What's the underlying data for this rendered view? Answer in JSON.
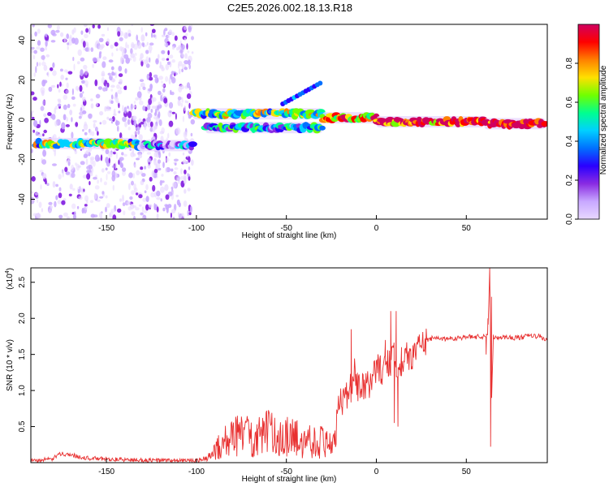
{
  "title": "C2E5.2026.002.18.13.R18",
  "colors": {
    "snr_line": "#e83030",
    "colormap": [
      "#e8d8ff",
      "#c8a8ff",
      "#8a2be2",
      "#2a00ff",
      "#0070ff",
      "#00d0ff",
      "#00ff90",
      "#70ff00",
      "#ffe000",
      "#ff8000",
      "#ff0000",
      "#d00060"
    ]
  },
  "chart_data": [
    {
      "type": "heatmap",
      "name": "spectrogram",
      "xlabel": "Height of straight line (km)",
      "ylabel": "Frequency (Hz)",
      "xlim": [
        -192,
        95
      ],
      "ylim": [
        -50,
        48
      ],
      "xticks": [
        -150,
        -100,
        -50,
        0,
        50
      ],
      "yticks": [
        -40,
        -20,
        0,
        20,
        40
      ],
      "colorbar": {
        "label": "Normalized spectral amplitude",
        "range": [
          0,
          1
        ],
        "ticks": [
          0.0,
          0.2,
          0.4,
          0.6,
          0.8
        ]
      },
      "ridges": [
        {
          "x_start": -190,
          "x_end": -132,
          "freq": -12,
          "amplitude": 0.55
        },
        {
          "x_start": -132,
          "x_end": -102,
          "freq": -13,
          "amplitude": 0.3
        },
        {
          "x_start": -102,
          "x_end": -30,
          "freq": 3,
          "amplitude": 0.55
        },
        {
          "x_start": -95,
          "x_end": -30,
          "freq": -4,
          "amplitude": 0.4
        },
        {
          "x_start": -30,
          "x_end": 0,
          "freq": 1,
          "amplitude": 0.8
        },
        {
          "x_start": 0,
          "x_end": 60,
          "freq": -1,
          "amplitude": 0.9
        },
        {
          "x_start": 60,
          "x_end": 94,
          "freq": -2,
          "amplitude": 0.95
        }
      ],
      "noise_region": {
        "x_start": -192,
        "x_end": -102,
        "freq_range": [
          -50,
          48
        ]
      }
    },
    {
      "type": "line",
      "name": "snr",
      "xlabel": "Height of straight line (km)",
      "ylabel": "SNR (10 * v/v)",
      "yscale_label": "(x10",
      "yscale_exponent": "4",
      "xlim": [
        -192,
        95
      ],
      "ylim": [
        0,
        2.7
      ],
      "xticks": [
        -150,
        -100,
        -50,
        0,
        50
      ],
      "yticks": [
        0.5,
        1.0,
        1.5,
        2.0,
        2.5
      ],
      "ytick_labels": [
        "0.5",
        "1.0",
        "1.5",
        "2.0",
        "2.5"
      ],
      "series": [
        {
          "name": "SNR",
          "x": [
            -192,
            -180,
            -175,
            -160,
            -140,
            -120,
            -100,
            -95,
            -90,
            -85,
            -80,
            -75,
            -70,
            -65,
            -60,
            -55,
            -50,
            -45,
            -40,
            -35,
            -30,
            -25,
            -22,
            -20,
            -15,
            -12,
            -10,
            -5,
            0,
            5,
            8,
            10,
            12,
            14,
            16,
            20,
            25,
            30,
            40,
            50,
            60,
            62,
            63,
            64,
            65,
            70,
            80,
            85,
            90,
            95
          ],
          "y": [
            0.02,
            0.05,
            0.13,
            0.06,
            0.04,
            0.03,
            0.03,
            0.06,
            0.18,
            0.38,
            0.42,
            0.5,
            0.48,
            0.45,
            0.52,
            0.48,
            0.45,
            0.42,
            0.4,
            0.38,
            0.36,
            0.35,
            0.6,
            0.85,
            0.95,
            1.25,
            1.0,
            1.05,
            1.3,
            1.3,
            1.4,
            1.45,
            1.35,
            1.4,
            1.45,
            1.5,
            1.65,
            1.72,
            1.72,
            1.74,
            1.75,
            1.8,
            2.65,
            0.85,
            1.74,
            1.74,
            1.73,
            1.76,
            1.75,
            1.7
          ],
          "spikes": [
            {
              "x": -26,
              "y": 0.2
            },
            {
              "x": -14,
              "y": 1.85
            },
            {
              "x": 5,
              "y": 1.7
            },
            {
              "x": 8,
              "y": 2.1
            },
            {
              "x": 10,
              "y": 0.55
            },
            {
              "x": 11,
              "y": 2.1
            },
            {
              "x": 12,
              "y": 0.5
            },
            {
              "x": 14,
              "y": 1.6
            },
            {
              "x": 61,
              "y": 1.5
            },
            {
              "x": 62,
              "y": 2.0
            },
            {
              "x": 63,
              "y": 2.7
            },
            {
              "x": 63.5,
              "y": 0.22
            },
            {
              "x": 64,
              "y": 2.3
            }
          ]
        }
      ]
    }
  ]
}
